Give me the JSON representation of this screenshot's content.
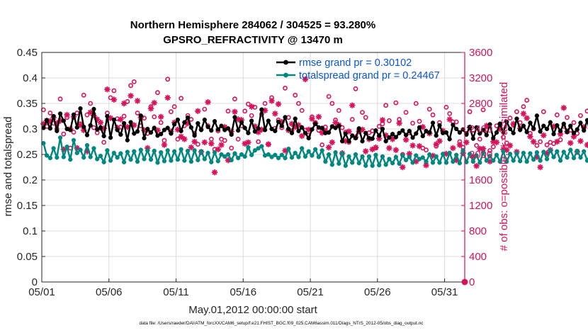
{
  "chart_data": {
    "type": "line",
    "title_line1": "Northern Hemisphere 284062 / 304525 = 93.280%",
    "title_line2": "GPSRO_REFRACTIVITY @ 13470 m",
    "xlabel": "May.01,2012 00:00:00 start",
    "ylabel_left": "rmse and totalspread",
    "ylabel_right": "# of obs: o=possible; ∗=assimilated",
    "footer": "data file: /Users/raeder/DAI/ATM_forcXX/CAM6_setup/f.e21.FHIST_BGC.f09_025.CAM6assim.011/Diags_NTrS_2012-05/obs_diag_output.nc",
    "xlim": [
      0,
      31.5
    ],
    "ylim_left": [
      0,
      0.45
    ],
    "ylim_right": [
      0,
      3600
    ],
    "x_ticks": [
      {
        "x": 0,
        "label": "05/01"
      },
      {
        "x": 5,
        "label": "05/06"
      },
      {
        "x": 10,
        "label": "05/11"
      },
      {
        "x": 15,
        "label": "05/16"
      },
      {
        "x": 20,
        "label": "05/21"
      },
      {
        "x": 25,
        "label": "05/26"
      },
      {
        "x": 30,
        "label": "05/31"
      }
    ],
    "y_ticks_left": [
      "0",
      "0.05",
      "0.1",
      "0.15",
      "0.2",
      "0.25",
      "0.3",
      "0.35",
      "0.4",
      "0.45"
    ],
    "y_ticks_right": [
      "0",
      "400",
      "800",
      "1200",
      "1600",
      "2000",
      "2400",
      "2800",
      "3200",
      "3600"
    ],
    "step_days": 0.25,
    "colors": {
      "rmse": "#000000",
      "spread": "#00877f",
      "obs": "#d6135c",
      "legend_text": "#0a55d6",
      "grid": "#dcdcdc"
    },
    "series": [
      {
        "name": "rmse grand pr = 0.30102",
        "key": "rmse",
        "axis": "left",
        "values": [
          0.302,
          0.317,
          0.301,
          0.325,
          0.296,
          0.33,
          0.316,
          0.3,
          0.298,
          0.328,
          0.303,
          0.34,
          0.304,
          0.288,
          0.307,
          0.339,
          0.299,
          0.303,
          0.286,
          0.325,
          0.283,
          0.318,
          0.298,
          0.289,
          0.311,
          0.278,
          0.313,
          0.291,
          0.295,
          0.326,
          0.282,
          0.3,
          0.293,
          0.302,
          0.287,
          0.29,
          0.298,
          0.302,
          0.291,
          0.309,
          0.318,
          0.296,
          0.313,
          0.322,
          0.303,
          0.287,
          0.311,
          0.298,
          0.318,
          0.304,
          0.297,
          0.315,
          0.299,
          0.306,
          0.298,
          0.301,
          0.289,
          0.323,
          0.297,
          0.313,
          0.302,
          0.292,
          0.316,
          0.295,
          0.301,
          0.338,
          0.298,
          0.316,
          0.3,
          0.296,
          0.314,
          0.306,
          0.323,
          0.3,
          0.292,
          0.32,
          0.296,
          0.303,
          0.292,
          0.282,
          0.299,
          0.31,
          0.303,
          0.302,
          0.292,
          0.293,
          0.305,
          0.302,
          0.306,
          0.276,
          0.291,
          0.276,
          0.287,
          0.282,
          0.301,
          0.276,
          0.292,
          0.282,
          0.281,
          0.297,
          0.287,
          0.3,
          0.276,
          0.283,
          0.29,
          0.284,
          0.292,
          0.297,
          0.288,
          0.296,
          0.283,
          0.291,
          0.303,
          0.286,
          0.296,
          0.293,
          0.312,
          0.287,
          0.307,
          0.292,
          0.293,
          0.28,
          0.308,
          0.3,
          0.293,
          0.299,
          0.289,
          0.304,
          0.281,
          0.303,
          0.291,
          0.298,
          0.288,
          0.309,
          0.282,
          0.293,
          0.31,
          0.293,
          0.314,
          0.3,
          0.292,
          0.32,
          0.298,
          0.306,
          0.294,
          0.312,
          0.301,
          0.326,
          0.295,
          0.306,
          0.3,
          0.313,
          0.29,
          0.307,
          0.296,
          0.31,
          0.294,
          0.306,
          0.292,
          0.299,
          0.312,
          0.297,
          0.317,
          0.29,
          0.295,
          0.31,
          0.291,
          0.296,
          0.333,
          0.3,
          0.315,
          0.283,
          0.286,
          0.319,
          0.302,
          0.271,
          0.276,
          0.296,
          0.302,
          0.293,
          0.294,
          0.267,
          0.267,
          0.289,
          0.301,
          0.268
        ]
      },
      {
        "name": "totalspread grand pr = 0.24467",
        "key": "spread",
        "axis": "left",
        "values": [
          0.272,
          0.248,
          0.243,
          0.262,
          0.244,
          0.283,
          0.245,
          0.265,
          0.24,
          0.278,
          0.253,
          0.259,
          0.244,
          0.268,
          0.245,
          0.262,
          0.241,
          0.247,
          0.235,
          0.258,
          0.238,
          0.253,
          0.244,
          0.252,
          0.235,
          0.255,
          0.24,
          0.256,
          0.236,
          0.259,
          0.241,
          0.258,
          0.24,
          0.257,
          0.234,
          0.254,
          0.237,
          0.258,
          0.238,
          0.256,
          0.24,
          0.26,
          0.238,
          0.257,
          0.236,
          0.258,
          0.239,
          0.256,
          0.241,
          0.253,
          0.235,
          0.254,
          0.237,
          0.25,
          0.246,
          0.25,
          0.239,
          0.252,
          0.243,
          0.25,
          0.246,
          0.264,
          0.249,
          0.258,
          0.262,
          0.266,
          0.248,
          0.25,
          0.245,
          0.249,
          0.243,
          0.249,
          0.243,
          0.261,
          0.244,
          0.253,
          0.245,
          0.262,
          0.246,
          0.256,
          0.248,
          0.26,
          0.245,
          0.258,
          0.236,
          0.25,
          0.23,
          0.254,
          0.232,
          0.252,
          0.228,
          0.246,
          0.234,
          0.25,
          0.233,
          0.246,
          0.228,
          0.246,
          0.228,
          0.249,
          0.229,
          0.246,
          0.23,
          0.241,
          0.233,
          0.245,
          0.232,
          0.248,
          0.239,
          0.245,
          0.234,
          0.248,
          0.241,
          0.244,
          0.236,
          0.25,
          0.234,
          0.246,
          0.234,
          0.251,
          0.234,
          0.253,
          0.236,
          0.249,
          0.233,
          0.258,
          0.235,
          0.251,
          0.236,
          0.248,
          0.234,
          0.254,
          0.238,
          0.247,
          0.238,
          0.249,
          0.236,
          0.256,
          0.236,
          0.251,
          0.238,
          0.252,
          0.237,
          0.253,
          0.236,
          0.252,
          0.24,
          0.254,
          0.238,
          0.255,
          0.241,
          0.258,
          0.245,
          0.256,
          0.238,
          0.255,
          0.244,
          0.259,
          0.243,
          0.257,
          0.244,
          0.256,
          0.238,
          0.252,
          0.24,
          0.251,
          0.244,
          0.26,
          0.243,
          0.25,
          0.234,
          0.247,
          0.24,
          0.25,
          0.238,
          0.25,
          0.235,
          0.244,
          0.234,
          0.238,
          0.238,
          0.244,
          0.233,
          0.238,
          0.229,
          0.239,
          0.231
        ]
      },
      {
        "name": "obs possible",
        "key": "possible",
        "axis": "right",
        "marker": "o",
        "values": [
          2700,
          2440,
          2650,
          2490,
          2400,
          2870,
          2320,
          2580,
          2100,
          2350,
          2650,
          2480,
          2930,
          2620,
          2800,
          2420,
          2340,
          2410,
          2190,
          2650,
          2890,
          3000,
          2560,
          2430,
          2600,
          2830,
          3080,
          3140,
          2650,
          2450,
          2570,
          2330,
          2750,
          2590,
          2970,
          2500,
          2220,
          3180,
          2670,
          2750,
          2240,
          2880,
          2450,
          2610,
          2550,
          2330,
          2160,
          2390,
          2710,
          2450,
          2240,
          2080,
          2370,
          2240,
          2220,
          2680,
          2100,
          2870,
          2240,
          2450,
          2680,
          2790,
          2610,
          2740,
          2200,
          2630,
          2800,
          2160,
          2890,
          2410,
          2540,
          2420,
          3040,
          2580,
          2370,
          2930,
          2800,
          2690,
          2380,
          2300,
          2590,
          2500,
          2380,
          2150,
          2430,
          2910,
          2800,
          2540,
          2690,
          2420,
          2350,
          2190,
          2550,
          3030,
          2380,
          2660,
          2580,
          2340,
          2370,
          2100,
          2440,
          2480,
          2770,
          2530,
          2290,
          2810,
          2550,
          2000,
          2660,
          2340,
          2490,
          2800,
          2520,
          2100,
          2070,
          2710,
          2620,
          2130,
          2500,
          2350,
          2740,
          2640,
          2510,
          2510,
          2200,
          2110,
          2330,
          2670,
          2330,
          2140,
          2240,
          2700,
          2390,
          2060,
          2120,
          2450,
          2480,
          2270,
          2180,
          2570,
          2460,
          2670,
          2500,
          2750,
          2850,
          2330,
          2400,
          2140,
          2200,
          2670,
          2150,
          2190,
          2170,
          2620,
          2230,
          2440,
          2580,
          2380,
          2500,
          2330,
          2610,
          2420,
          2680,
          2340,
          2290,
          2200,
          2380,
          2700,
          2040,
          2170,
          2320,
          2090,
          2670,
          2400,
          2520,
          2020,
          2780,
          2610,
          2240,
          2080,
          2650,
          2620,
          2300,
          2540,
          2250,
          2010,
          2680,
          2340,
          2460,
          2660,
          2380,
          2080
        ]
      },
      {
        "name": "obs assimilated",
        "key": "assimilated",
        "axis": "right",
        "marker": "*",
        "values": [
          2480,
          2530,
          2520,
          2580,
          2490,
          2530,
          2080,
          2620,
          2400,
          2590,
          2100,
          2460,
          2380,
          2050,
          2660,
          2610,
          2550,
          2500,
          2410,
          3020,
          2570,
          2860,
          2420,
          2550,
          2800,
          2430,
          2920,
          2460,
          2840,
          2580,
          2380,
          2100,
          2720,
          2810,
          2380,
          2590,
          2150,
          2890,
          2360,
          2500,
          2390,
          2280,
          2240,
          2490,
          2110,
          2200,
          2680,
          2040,
          2190,
          2820,
          2170,
          1720,
          2080,
          2150,
          2430,
          1910,
          2360,
          2670,
          2550,
          2540,
          2170,
          2190,
          2750,
          2440,
          2350,
          2390,
          2690,
          2160,
          2840,
          2640,
          2790,
          2510,
          2060,
          2380,
          2480,
          2430,
          2460,
          2290,
          3180,
          2390,
          2560,
          2490,
          2590,
          2340,
          2370,
          2110,
          2190,
          2500,
          2460,
          2020,
          2210,
          2360,
          2770,
          2270,
          2360,
          2390,
          2050,
          2240,
          2080,
          2110,
          2250,
          2540,
          2300,
          2100,
          2240,
          2070,
          2490,
          1800,
          2230,
          2010,
          2140,
          1890,
          2130,
          2430,
          1830,
          2330,
          1980,
          2160,
          2210,
          2370,
          2010,
          2550,
          2100,
          1910,
          2150,
          2020,
          2190,
          2420,
          1970,
          1820,
          2090,
          2090,
          2450,
          1890,
          2200,
          2190,
          2400,
          2080,
          2070,
          2140,
          2480,
          2040,
          2410,
          2640,
          2570,
          2280,
          2200,
          1960,
          1800,
          2300,
          2020,
          2070,
          2440,
          2200,
          2320,
          2730,
          2360,
          2180,
          2280,
          2040,
          2210,
          2430,
          2150,
          2410,
          1930,
          2090,
          2200,
          2160,
          1700,
          2240,
          2040,
          2120,
          1960,
          2220,
          2410,
          2010,
          2050,
          2200,
          2060,
          2080,
          1850,
          2500,
          2390,
          2130,
          2070,
          2440,
          2190,
          2380,
          2510,
          2330,
          1880,
          2410,
          2200,
          2060,
          1830
        ]
      }
    ],
    "possible_end_value": 0
  }
}
